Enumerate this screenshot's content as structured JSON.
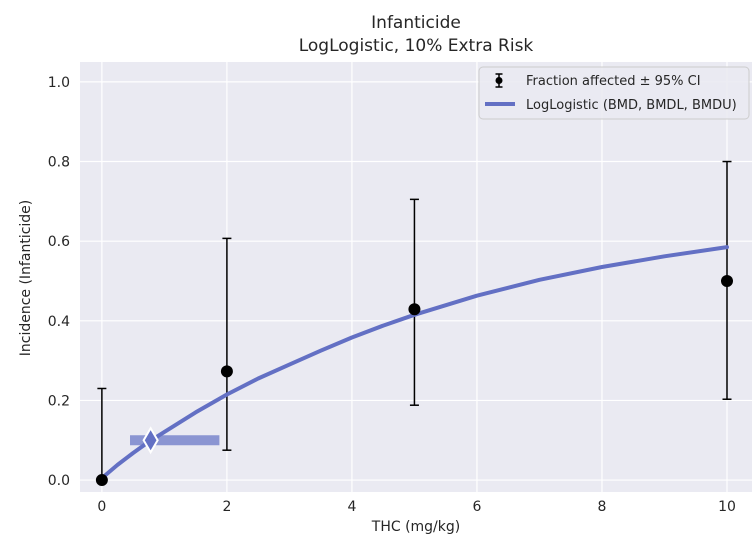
{
  "chart_data": {
    "type": "line",
    "title": "Infanticide",
    "subtitle": "LogLogistic, 10% Extra Risk",
    "xlabel": "THC (mg/kg)",
    "ylabel": "Incidence (Infanticide)",
    "xlim": [
      -0.35,
      10.4
    ],
    "ylim": [
      -0.03,
      1.05
    ],
    "xticks": [
      0,
      2,
      4,
      6,
      8,
      10
    ],
    "yticks": [
      0.0,
      0.2,
      0.4,
      0.6,
      0.8,
      1.0
    ],
    "x_tick_labels": [
      "0",
      "2",
      "4",
      "6",
      "8",
      "10"
    ],
    "y_tick_labels": [
      "0.0",
      "0.2",
      "0.4",
      "0.6",
      "0.8",
      "1.0"
    ],
    "grid": true,
    "legend_position": "top-right",
    "series": [
      {
        "name": "Fraction affected ± 95% CI",
        "kind": "points-with-error",
        "color": "#000000",
        "x": [
          0,
          2,
          5,
          10
        ],
        "y": [
          0.0,
          0.273,
          0.429,
          0.5
        ],
        "ci_low": [
          0.0,
          0.075,
          0.188,
          0.203
        ],
        "ci_high": [
          0.23,
          0.607,
          0.705,
          0.8
        ]
      },
      {
        "name": "LogLogistic (BMD, BMDL, BMDU)",
        "kind": "curve",
        "color": "#6370c4",
        "x": [
          0,
          0.25,
          0.5,
          0.75,
          1,
          1.5,
          2,
          2.5,
          3,
          3.5,
          4,
          4.5,
          5,
          6,
          7,
          8,
          9,
          10
        ],
        "y": [
          0.005,
          0.038,
          0.068,
          0.096,
          0.121,
          0.17,
          0.215,
          0.255,
          0.29,
          0.325,
          0.358,
          0.388,
          0.415,
          0.463,
          0.503,
          0.535,
          0.562,
          0.585
        ]
      }
    ],
    "bmd": {
      "x": 0.78,
      "y": 0.1,
      "bmdl": 0.45,
      "bmdu": 1.88,
      "color": "#6370c4"
    }
  }
}
